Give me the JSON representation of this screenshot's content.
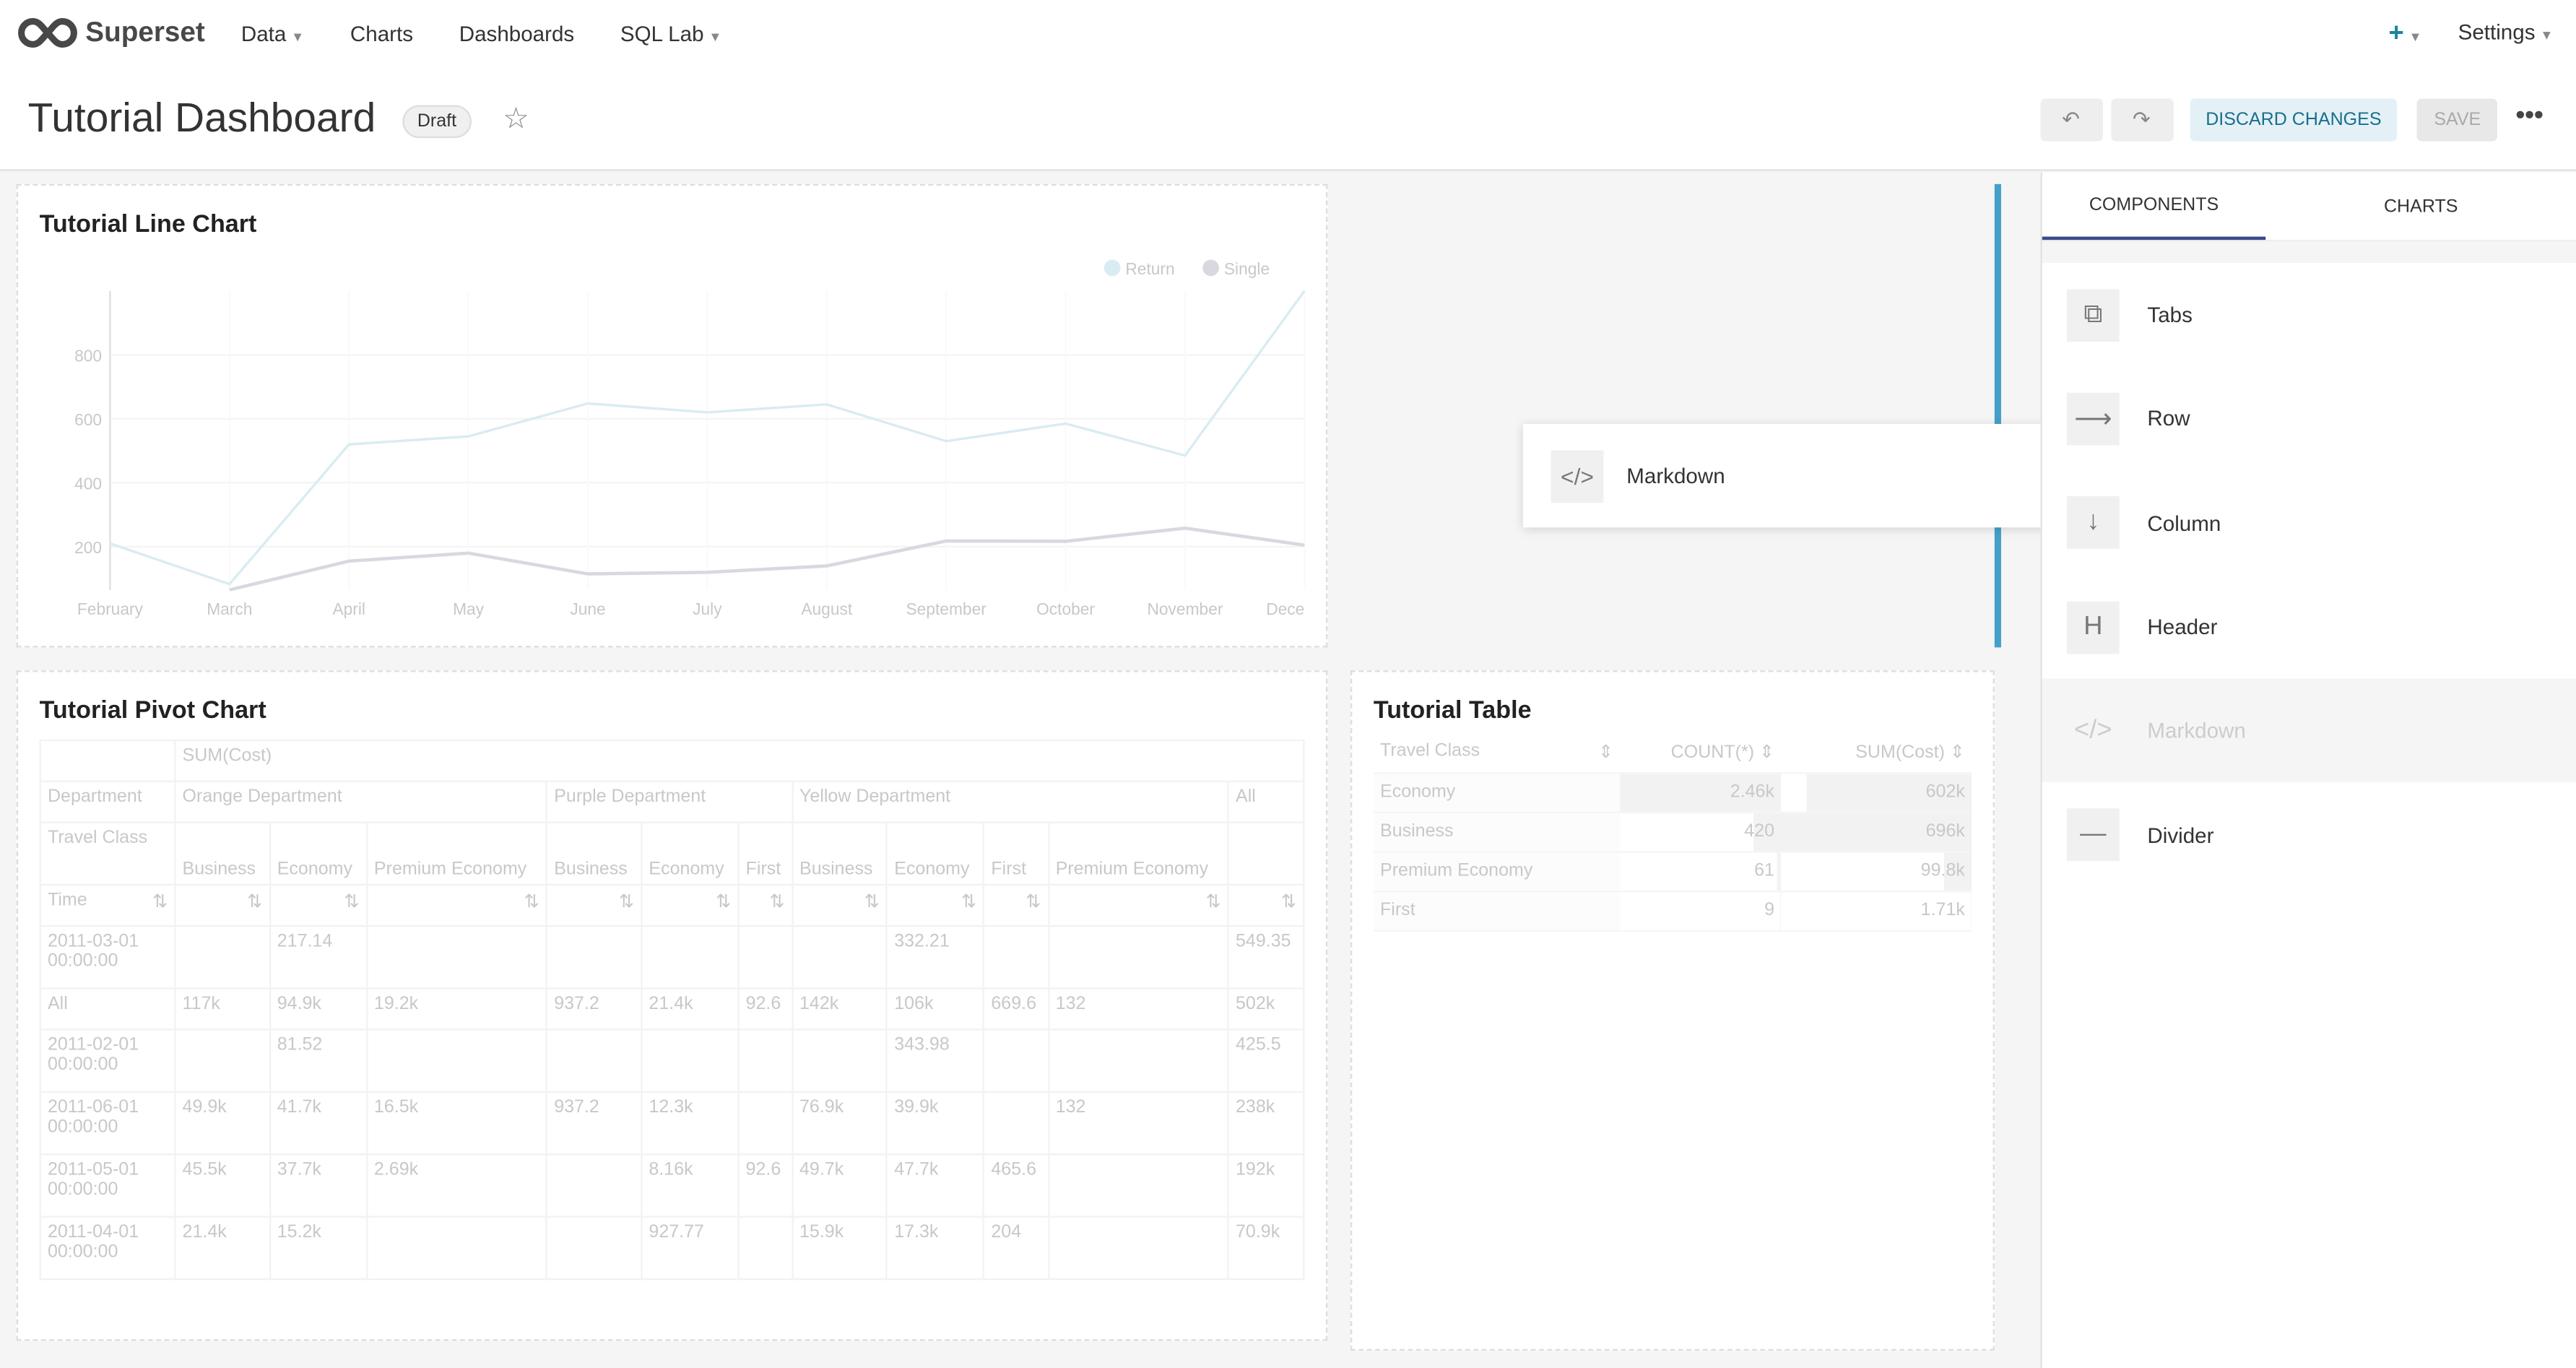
{
  "nav": {
    "brand": "Superset",
    "items": [
      "Data",
      "Charts",
      "Dashboards",
      "SQL Lab"
    ],
    "plus": "+",
    "settings": "Settings"
  },
  "header": {
    "title": "Tutorial Dashboard",
    "badge": "Draft",
    "discard": "DISCARD CHANGES",
    "save": "SAVE",
    "more": "•••"
  },
  "line_chart": {
    "title": "Tutorial Line Chart",
    "chart_data": {
      "type": "line",
      "categories": [
        "February",
        "March",
        "April",
        "May",
        "June",
        "July",
        "August",
        "September",
        "October",
        "November",
        "Dece"
      ],
      "ylim": [
        65,
        1000
      ],
      "yticks": [
        200,
        400,
        600,
        800
      ],
      "legend": "top-right",
      "series": [
        {
          "name": "Return",
          "color": "#d9ecf2",
          "values": [
            210,
            83,
            520,
            545,
            648,
            620,
            645,
            530,
            585,
            485,
            1000
          ]
        },
        {
          "name": "Single",
          "color": "#d8d8e0",
          "values": [
            null,
            65,
            155,
            180,
            115,
            120,
            140,
            218,
            217,
            258,
            205
          ]
        }
      ]
    }
  },
  "pivot": {
    "title": "Tutorial Pivot Chart",
    "metric": "SUM(Cost)",
    "dept_label": "Department",
    "class_label": "Travel Class",
    "time_label": "Time",
    "departments": [
      {
        "name": "Orange Department",
        "span": 3
      },
      {
        "name": "Purple Department",
        "span": 3
      },
      {
        "name": "Yellow Department",
        "span": 4
      },
      {
        "name": "All",
        "span": 1
      }
    ],
    "classes": [
      "Business",
      "Economy",
      "Premium Economy",
      "Business",
      "Economy",
      "First",
      "Business",
      "Economy",
      "First",
      "Premium Economy",
      ""
    ],
    "rows": [
      {
        "time": "2011-03-01 00:00:00",
        "values": [
          "",
          "217.14",
          "",
          "",
          "",
          "",
          "",
          "332.21",
          "",
          "",
          "549.35"
        ]
      },
      {
        "time": "All",
        "values": [
          "117k",
          "94.9k",
          "19.2k",
          "937.2",
          "21.4k",
          "92.6",
          "142k",
          "106k",
          "669.6",
          "132",
          "502k"
        ]
      },
      {
        "time": "2011-02-01 00:00:00",
        "values": [
          "",
          "81.52",
          "",
          "",
          "",
          "",
          "",
          "343.98",
          "",
          "",
          "425.5"
        ]
      },
      {
        "time": "2011-06-01 00:00:00",
        "values": [
          "49.9k",
          "41.7k",
          "16.5k",
          "937.2",
          "12.3k",
          "",
          "76.9k",
          "39.9k",
          "",
          "132",
          "238k"
        ]
      },
      {
        "time": "2011-05-01 00:00:00",
        "values": [
          "45.5k",
          "37.7k",
          "2.69k",
          "",
          "8.16k",
          "92.6",
          "49.7k",
          "47.7k",
          "465.6",
          "",
          "192k"
        ]
      },
      {
        "time": "2011-04-01 00:00:00",
        "values": [
          "21.4k",
          "15.2k",
          "",
          "",
          "927.77",
          "",
          "15.9k",
          "17.3k",
          "204",
          "",
          "70.9k"
        ]
      }
    ]
  },
  "table": {
    "title": "Tutorial Table",
    "columns": [
      "Travel Class",
      "COUNT(*)",
      "SUM(Cost)"
    ],
    "rows": [
      {
        "c": "Economy",
        "n": "2.46k",
        "s": "602k"
      },
      {
        "c": "Business",
        "n": "420",
        "s": "696k"
      },
      {
        "c": "Premium Economy",
        "n": "61",
        "s": "99.8k"
      },
      {
        "c": "First",
        "n": "9",
        "s": "1.71k"
      }
    ]
  },
  "sidebar": {
    "tabs": [
      "COMPONENTS",
      "CHARTS"
    ],
    "items": [
      {
        "label": "Tabs",
        "icon": "tabs-icon"
      },
      {
        "label": "Row",
        "icon": "row-icon"
      },
      {
        "label": "Column",
        "icon": "column-icon"
      },
      {
        "label": "Header",
        "icon": "header-icon"
      },
      {
        "label": "Markdown",
        "icon": "markdown-icon"
      },
      {
        "label": "Divider",
        "icon": "divider-icon"
      }
    ]
  },
  "dragging": {
    "label": "Markdown"
  }
}
